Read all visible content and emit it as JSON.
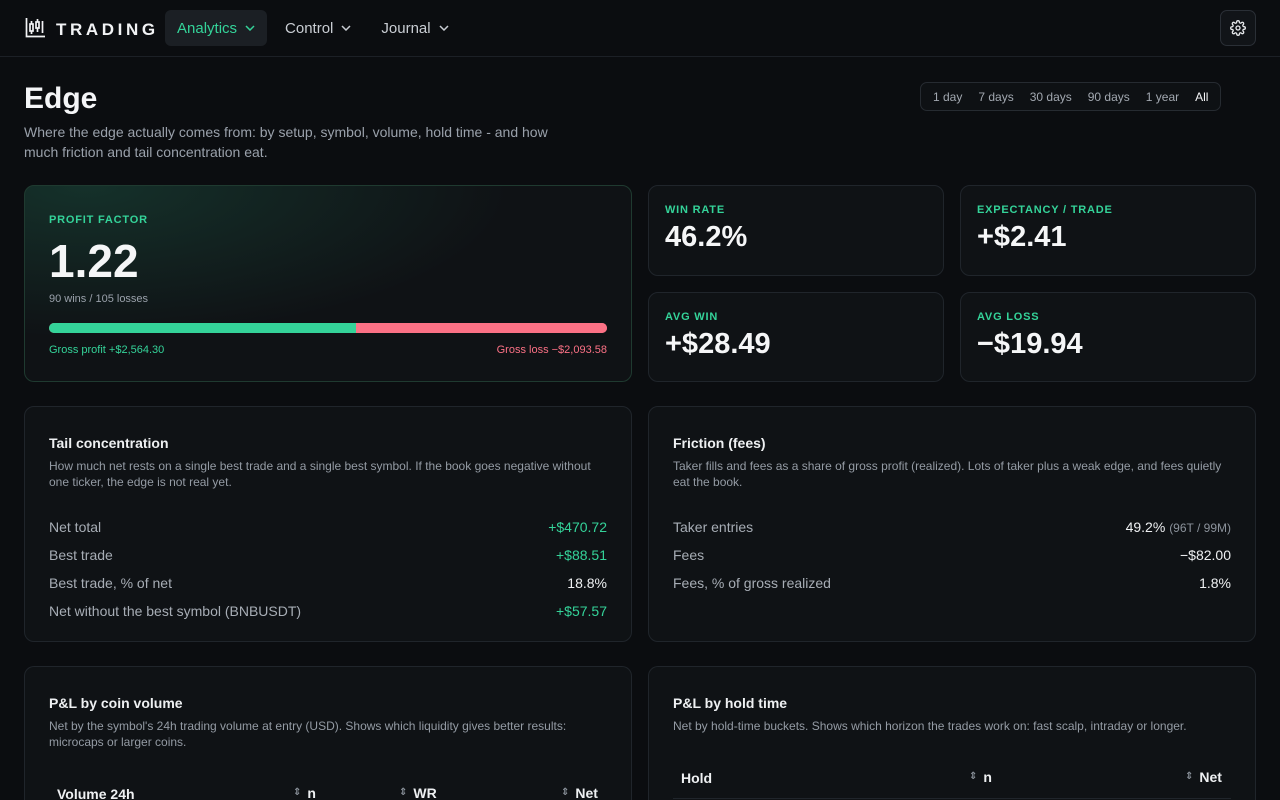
{
  "app": {
    "brand": "TRADING"
  },
  "nav": [
    {
      "label": "Analytics",
      "active": true
    },
    {
      "label": "Control",
      "active": false
    },
    {
      "label": "Journal",
      "active": false
    }
  ],
  "page": {
    "title": "Edge",
    "subtitle": "Where the edge actually comes from: by setup, symbol, volume, hold time - and how much friction and tail concentration eat."
  },
  "ranges": [
    {
      "label": "1 day",
      "active": false
    },
    {
      "label": "7 days",
      "active": false
    },
    {
      "label": "30 days",
      "active": false
    },
    {
      "label": "90 days",
      "active": false
    },
    {
      "label": "1 year",
      "active": false
    },
    {
      "label": "All",
      "active": true
    }
  ],
  "profit_factor": {
    "label": "PROFIT FACTOR",
    "value": "1.22",
    "sub": "90 wins / 105 losses",
    "gross_profit": "Gross profit +$2,564.30",
    "gross_loss": "Gross loss −$2,093.58",
    "profit_share": 0.55
  },
  "stats": {
    "win_rate": {
      "label": "WIN RATE",
      "value": "46.2%"
    },
    "expectancy": {
      "label": "EXPECTANCY / TRADE",
      "value": "+$2.41"
    },
    "avg_win": {
      "label": "AVG WIN",
      "value": "+$28.49"
    },
    "avg_loss": {
      "label": "AVG LOSS",
      "value": "−$19.94"
    }
  },
  "tail": {
    "title": "Tail concentration",
    "desc": "How much net rests on a single best trade and a single best symbol. If the book goes negative without one ticker, the edge is not real yet.",
    "rows": [
      {
        "label": "Net total",
        "value": "+$470.72"
      },
      {
        "label": "Best trade",
        "value": "+$88.51"
      },
      {
        "label": "Best trade, % of net",
        "value": "18.8%"
      },
      {
        "label": "Net without the best symbol (BNBUSDT)",
        "value": "+$57.57"
      }
    ]
  },
  "friction": {
    "title": "Friction (fees)",
    "desc": "Taker fills and fees as a share of gross profit (realized). Lots of taker plus a weak edge, and fees quietly eat the book.",
    "rows": [
      {
        "label": "Taker entries",
        "value": "49.2%",
        "note": "(96T / 99M)"
      },
      {
        "label": "Fees",
        "value": "−$82.00"
      },
      {
        "label": "Fees, % of gross realized",
        "value": "1.8%"
      }
    ]
  },
  "volume": {
    "title": "P&L by coin volume",
    "desc": "Net by the symbol's 24h trading volume at entry (USD). Shows which liquidity gives better results: microcaps or larger coins.",
    "columns": [
      "Volume 24h",
      "n",
      "WR",
      "Net"
    ]
  },
  "hold": {
    "title": "P&L by hold time",
    "desc": "Net by hold-time buckets. Shows which horizon the trades work on: fast scalp, intraday or longer.",
    "columns": [
      "Hold",
      "n",
      "Net"
    ]
  }
}
